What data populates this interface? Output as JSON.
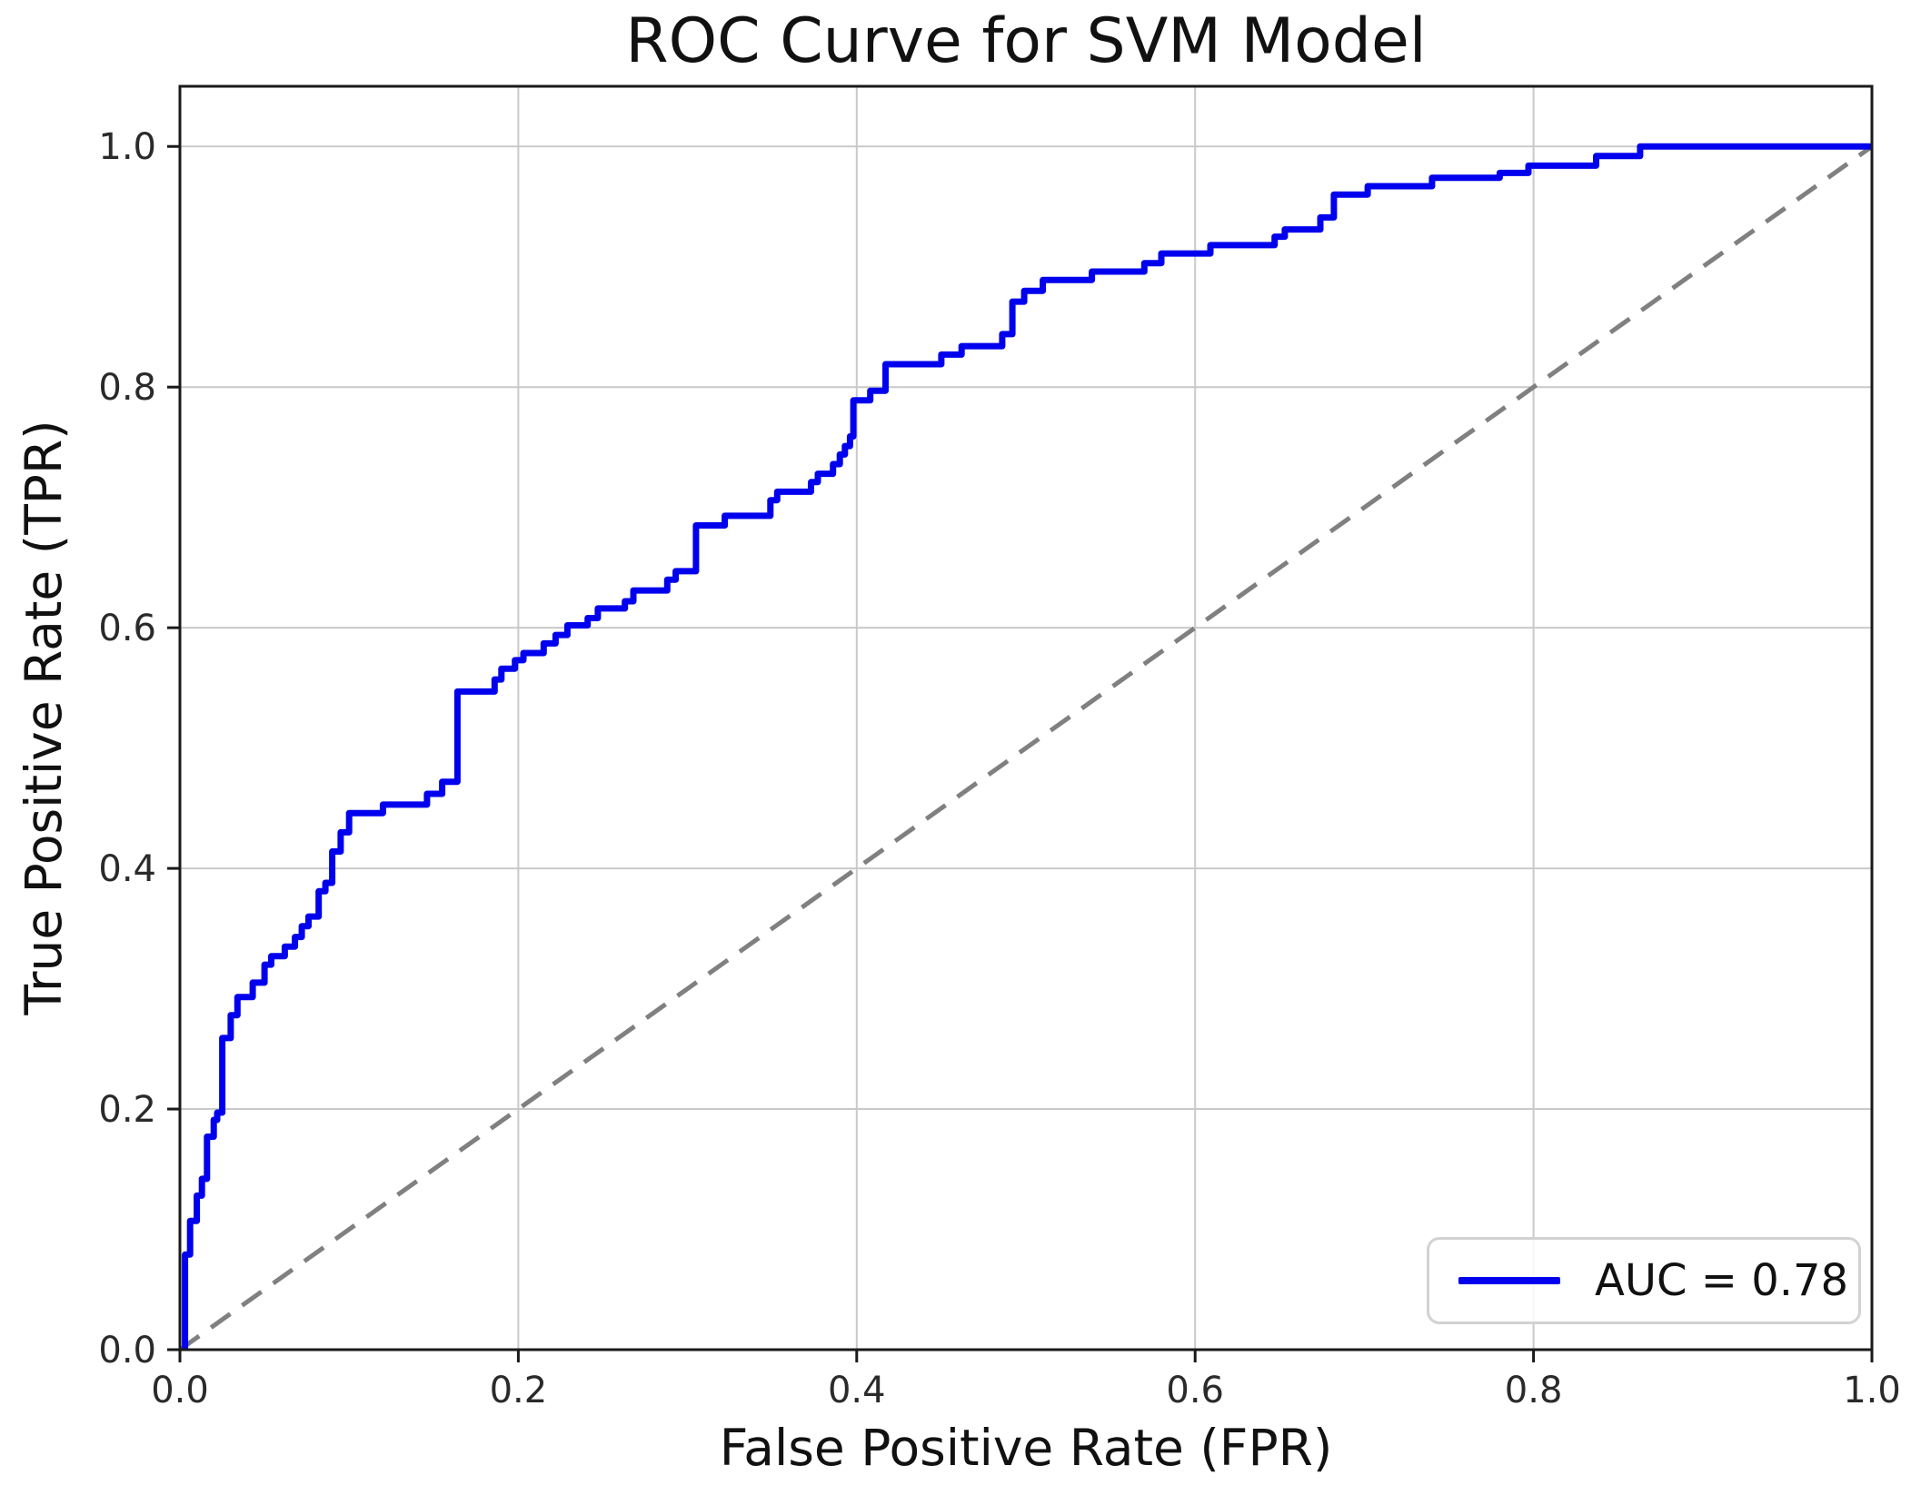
{
  "figure": {
    "title": "ROC Curve for SVM Model"
  },
  "axes": {
    "xlabel": "False Positive Rate (FPR)",
    "ylabel": "True Positive Rate (TPR)",
    "x_tick_labels": [
      "0.0",
      "0.2",
      "0.4",
      "0.6",
      "0.8",
      "1.0"
    ],
    "y_tick_labels": [
      "0.0",
      "0.2",
      "0.4",
      "0.6",
      "0.8",
      "1.0"
    ]
  },
  "legend": {
    "label": "AUC = 0.78"
  },
  "colors": {
    "curve": "#0000ee",
    "chance": "#808080",
    "grid": "#c9c9c9",
    "spine": "#1a1a1a"
  },
  "chart_data": {
    "type": "line",
    "title": "ROC Curve for SVM Model",
    "xlabel": "False Positive Rate (FPR)",
    "ylabel": "True Positive Rate (TPR)",
    "xlim": [
      0,
      1
    ],
    "ylim": [
      0,
      1.05
    ],
    "grid": true,
    "legend_position": "lower right",
    "auc": 0.78,
    "x_ticks": [
      0,
      0.2,
      0.4,
      0.6,
      0.8,
      1.0
    ],
    "y_ticks": [
      0,
      0.2,
      0.4,
      0.6,
      0.8,
      1.0
    ],
    "series": [
      {
        "name": "AUC = 0.78",
        "style": "steps-post",
        "color": "#0000ee",
        "linewidth": 7,
        "points": [
          [
            0.003,
            0.0
          ],
          [
            0.003,
            0.079
          ],
          [
            0.006,
            0.107
          ],
          [
            0.01,
            0.128
          ],
          [
            0.013,
            0.142
          ],
          [
            0.016,
            0.177
          ],
          [
            0.02,
            0.191
          ],
          [
            0.022,
            0.197
          ],
          [
            0.025,
            0.259
          ],
          [
            0.03,
            0.278
          ],
          [
            0.034,
            0.293
          ],
          [
            0.043,
            0.305
          ],
          [
            0.05,
            0.32
          ],
          [
            0.054,
            0.327
          ],
          [
            0.062,
            0.335
          ],
          [
            0.068,
            0.343
          ],
          [
            0.072,
            0.352
          ],
          [
            0.076,
            0.36
          ],
          [
            0.082,
            0.381
          ],
          [
            0.086,
            0.388
          ],
          [
            0.09,
            0.414
          ],
          [
            0.095,
            0.43
          ],
          [
            0.1,
            0.446
          ],
          [
            0.12,
            0.453
          ],
          [
            0.146,
            0.462
          ],
          [
            0.155,
            0.472
          ],
          [
            0.164,
            0.547
          ],
          [
            0.186,
            0.557
          ],
          [
            0.19,
            0.566
          ],
          [
            0.198,
            0.573
          ],
          [
            0.203,
            0.579
          ],
          [
            0.215,
            0.587
          ],
          [
            0.222,
            0.594
          ],
          [
            0.229,
            0.602
          ],
          [
            0.241,
            0.608
          ],
          [
            0.247,
            0.616
          ],
          [
            0.263,
            0.622
          ],
          [
            0.268,
            0.631
          ],
          [
            0.288,
            0.64
          ],
          [
            0.293,
            0.647
          ],
          [
            0.305,
            0.685
          ],
          [
            0.322,
            0.693
          ],
          [
            0.349,
            0.706
          ],
          [
            0.353,
            0.713
          ],
          [
            0.373,
            0.721
          ],
          [
            0.377,
            0.728
          ],
          [
            0.386,
            0.736
          ],
          [
            0.39,
            0.744
          ],
          [
            0.393,
            0.751
          ],
          [
            0.396,
            0.759
          ],
          [
            0.398,
            0.789
          ],
          [
            0.408,
            0.797
          ],
          [
            0.417,
            0.819
          ],
          [
            0.45,
            0.827
          ],
          [
            0.462,
            0.834
          ],
          [
            0.486,
            0.844
          ],
          [
            0.492,
            0.871
          ],
          [
            0.499,
            0.88
          ],
          [
            0.51,
            0.889
          ],
          [
            0.539,
            0.896
          ],
          [
            0.57,
            0.903
          ],
          [
            0.58,
            0.911
          ],
          [
            0.609,
            0.918
          ],
          [
            0.647,
            0.925
          ],
          [
            0.653,
            0.931
          ],
          [
            0.674,
            0.941
          ],
          [
            0.682,
            0.96
          ],
          [
            0.702,
            0.967
          ],
          [
            0.74,
            0.974
          ],
          [
            0.78,
            0.978
          ],
          [
            0.797,
            0.984
          ],
          [
            0.837,
            0.992
          ],
          [
            0.863,
            1.0
          ],
          [
            1.0,
            1.0
          ]
        ]
      },
      {
        "name": "chance-diagonal",
        "style": "dashed",
        "color": "#808080",
        "linewidth": 5,
        "dash": [
          26,
          16
        ],
        "points": [
          [
            0,
            0
          ],
          [
            1,
            1
          ]
        ]
      }
    ]
  }
}
